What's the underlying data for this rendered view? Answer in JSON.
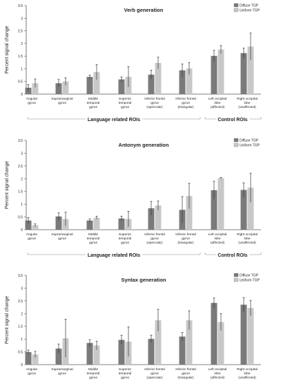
{
  "colors": {
    "diffuse": "#7a7a7a",
    "uniform": "#c8c8c8",
    "axis": "#555555",
    "error": "#333333"
  },
  "legend": {
    "items": [
      "Diffuse TGP",
      "Uniform TGP"
    ]
  },
  "ylabel": "Percent signal change",
  "groups": {
    "language": "Language related ROIs",
    "control": "Control ROIs"
  },
  "categories": [
    [
      "Angular",
      "gyrus"
    ],
    [
      "Supramarginal",
      "gyrus"
    ],
    [
      "Middle",
      "temporal",
      "gyrus"
    ],
    [
      "Superior",
      "temporal",
      "gyrus"
    ],
    [
      "Inferior frontal",
      "gyrus",
      "(opercular)"
    ],
    [
      "Inferior frontal",
      "gyrus",
      "(triangular)"
    ],
    [
      "Left occipital",
      "lobe",
      "(affected)"
    ],
    [
      "Right occipital",
      "lobe",
      "(unaffected)"
    ]
  ],
  "chart_data": [
    {
      "type": "bar",
      "title": "Verb generation",
      "ylim": [
        0,
        3.5
      ],
      "yticks": [
        "0",
        "0.5",
        "1",
        "1.5",
        "2",
        "2.5",
        "3",
        "3.5"
      ],
      "series": [
        {
          "name": "Diffuse TGP",
          "values": [
            0.25,
            0.43,
            0.68,
            0.58,
            0.77,
            0.94,
            1.51,
            1.62
          ],
          "err": [
            0.12,
            0.15,
            0.07,
            0.1,
            0.18,
            0.25,
            0.22,
            0.2
          ]
        },
        {
          "name": "Uniform TGP",
          "values": [
            0.43,
            0.5,
            0.87,
            0.68,
            1.23,
            1.01,
            1.76,
            1.88
          ],
          "err": [
            0.17,
            0.15,
            0.3,
            0.4,
            0.23,
            0.23,
            0.16,
            0.53
          ]
        }
      ]
    },
    {
      "type": "bar",
      "title": "Antonym generation",
      "ylim": [
        0,
        3.5
      ],
      "yticks": [
        "0",
        "0.5",
        "1",
        "1.5",
        "2",
        "2.5",
        "3",
        "3.5"
      ],
      "series": [
        {
          "name": "Diffuse TGP",
          "values": [
            0.36,
            0.52,
            0.36,
            0.44,
            0.84,
            0.78,
            1.55,
            1.56
          ],
          "err": [
            0.12,
            0.14,
            0.07,
            0.09,
            0.27,
            0.52,
            0.35,
            0.28
          ]
        },
        {
          "name": "Uniform TGP",
          "values": [
            0.18,
            0.42,
            0.47,
            0.42,
            0.95,
            1.32,
            2.02,
            1.65
          ],
          "err": [
            0.05,
            0.27,
            0.06,
            0.3,
            0.18,
            0.5,
            0.03,
            0.57
          ]
        }
      ]
    },
    {
      "type": "bar",
      "title": "Syntax generation",
      "ylim": [
        0,
        3.5
      ],
      "yticks": [
        "0",
        "0.5",
        "1",
        "1.5",
        "2",
        "2.5",
        "3",
        "3.5"
      ],
      "series": [
        {
          "name": "Diffuse TGP",
          "values": [
            0.49,
            0.63,
            0.85,
            0.97,
            1.01,
            1.1,
            2.42,
            2.35
          ],
          "err": [
            0.08,
            0.18,
            0.13,
            0.18,
            0.15,
            0.16,
            0.19,
            0.28
          ]
        },
        {
          "name": "Uniform TGP",
          "values": [
            0.4,
            1.03,
            0.75,
            0.9,
            1.74,
            1.74,
            1.67,
            2.22
          ],
          "err": [
            0.12,
            0.75,
            0.17,
            0.58,
            0.43,
            0.37,
            0.33,
            0.3
          ]
        }
      ]
    }
  ]
}
